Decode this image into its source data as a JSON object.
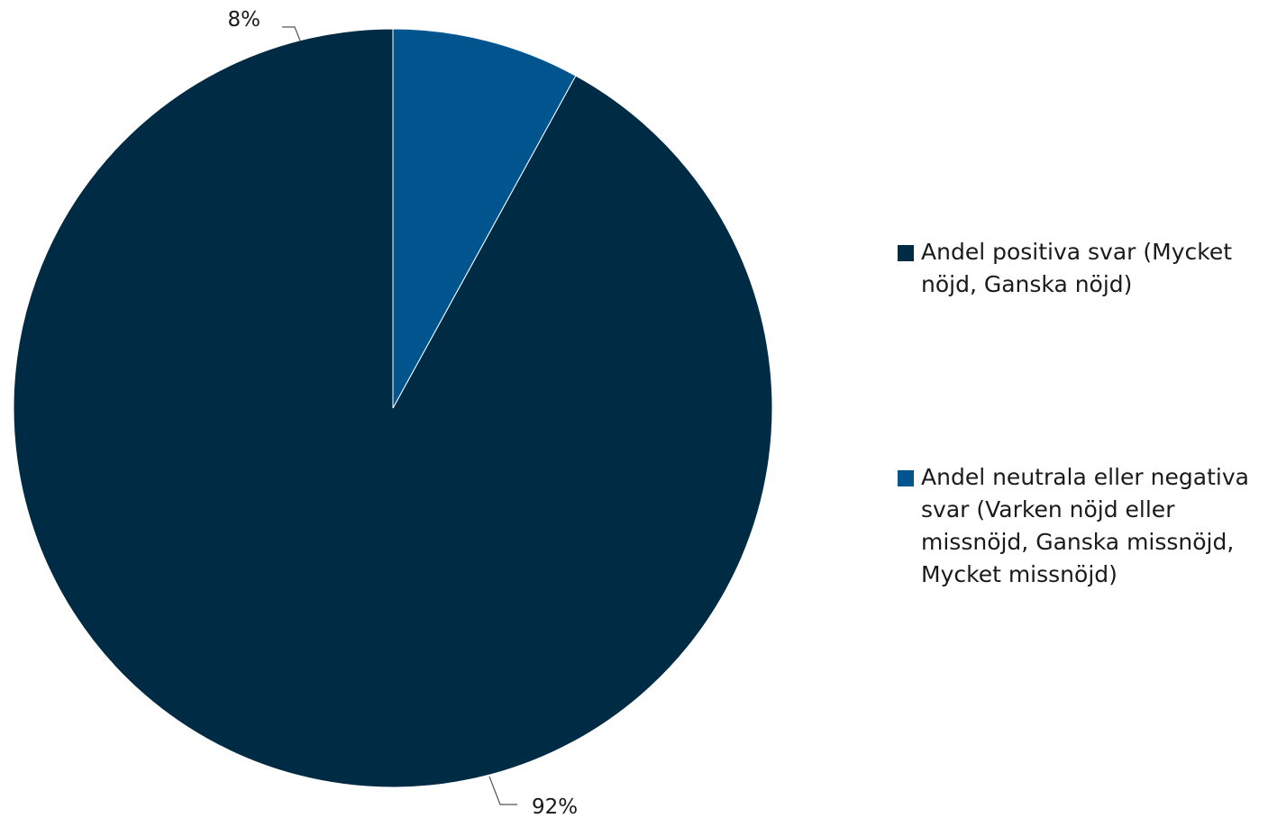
{
  "chart_data": {
    "type": "pie",
    "title": "",
    "start_angle_deg": 0,
    "direction": "counterclockwise",
    "slices": [
      {
        "name": "Andel positiva svar (Mycket nöjd, Ganska nöjd)",
        "value": 92,
        "label": "92%",
        "color": "#002b45"
      },
      {
        "name": "Andel neutrala eller negativa svar (Varken nöjd eller missnöjd, Ganska missnöjd, Mycket missnöjd)",
        "value": 8,
        "label": "8%",
        "color": "#00558f"
      }
    ],
    "legend_position": "right"
  }
}
